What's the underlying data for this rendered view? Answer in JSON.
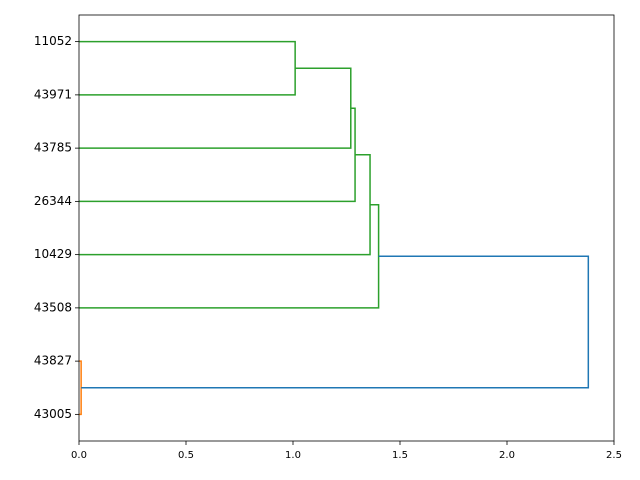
{
  "chart_data": {
    "type": "dendrogram",
    "orientation": "left",
    "leaves": [
      "11052",
      "43971",
      "43785",
      "26344",
      "10429",
      "43508",
      "43827",
      "43005"
    ],
    "links": [
      {
        "children": [
          0,
          1
        ],
        "height": 1.01,
        "color": "#2ca02c"
      },
      {
        "children": [
          8,
          2
        ],
        "height": 1.27,
        "color": "#2ca02c"
      },
      {
        "children": [
          9,
          3
        ],
        "height": 1.29,
        "color": "#2ca02c"
      },
      {
        "children": [
          10,
          4
        ],
        "height": 1.36,
        "color": "#2ca02c"
      },
      {
        "children": [
          11,
          5
        ],
        "height": 1.4,
        "color": "#2ca02c"
      },
      {
        "children": [
          6,
          7
        ],
        "height": 0.01,
        "color": "#ff7f0e"
      },
      {
        "children": [
          12,
          13
        ],
        "height": 2.38,
        "color": "#1f77b4"
      }
    ],
    "xlim": [
      0,
      2.5
    ],
    "xticks": [
      {
        "value": 0,
        "label": "0.0"
      },
      0.5,
      {
        "value": 1,
        "label": "1.0"
      },
      1.5,
      {
        "value": 2,
        "label": "2.0"
      },
      2.5
    ]
  }
}
